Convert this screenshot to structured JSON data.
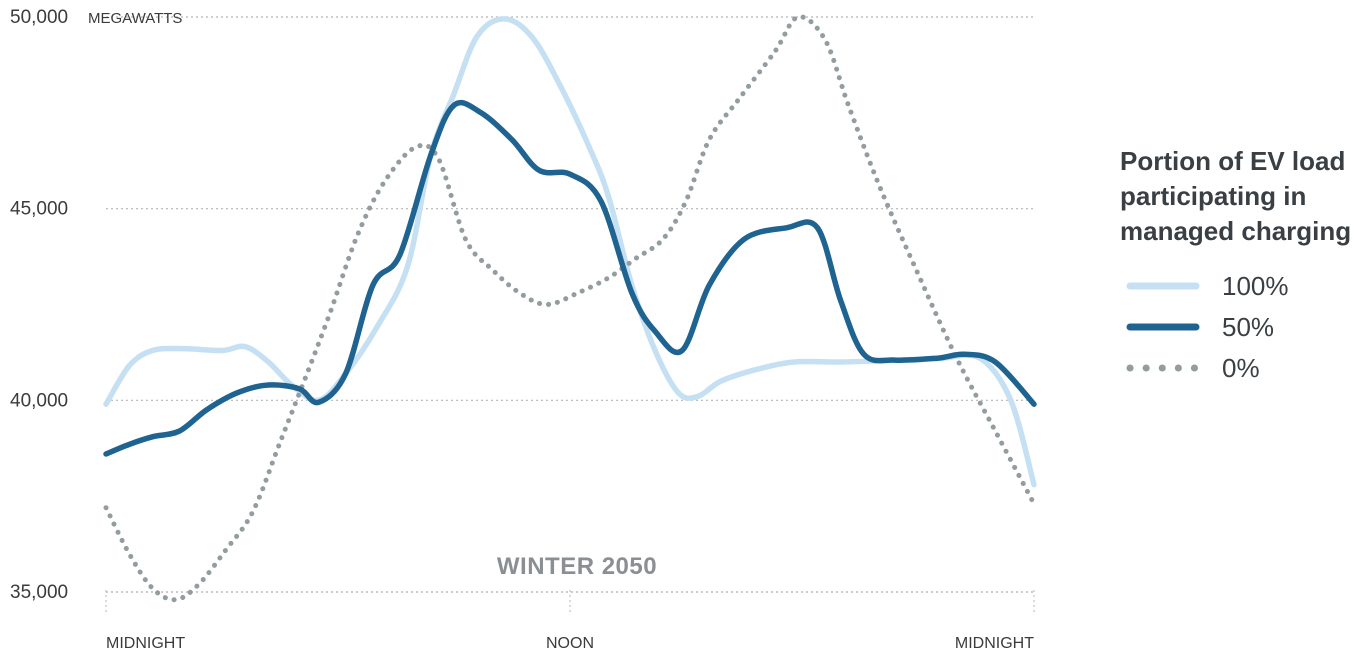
{
  "chart_data": {
    "type": "line",
    "title": "",
    "annotation": "WINTER 2050",
    "y_unit": "MEGAWATTS",
    "ylim": [
      35000,
      50000
    ],
    "y_ticks": [
      {
        "value": 35000,
        "label": "35,000"
      },
      {
        "value": 40000,
        "label": "40,000"
      },
      {
        "value": 45000,
        "label": "45,000"
      },
      {
        "value": 50000,
        "label": "50,000"
      }
    ],
    "x_domain_hours": [
      0,
      24
    ],
    "x_ticks": [
      {
        "hour": 0,
        "label": "MIDNIGHT"
      },
      {
        "hour": 12,
        "label": "NOON"
      },
      {
        "hour": 24,
        "label": "MIDNIGHT"
      }
    ],
    "grid": "horizontal dotted",
    "legend": {
      "title_lines": [
        "Portion of EV load",
        "participating in",
        "managed charging"
      ],
      "placement": "right"
    },
    "series": [
      {
        "name": "100%",
        "color": "#c5e0f3",
        "style": "solid",
        "points": [
          [
            0.0,
            39900
          ],
          [
            0.6,
            40900
          ],
          [
            1.2,
            41300
          ],
          [
            2.0,
            41350
          ],
          [
            3.0,
            41300
          ],
          [
            3.6,
            41400
          ],
          [
            4.2,
            41000
          ],
          [
            4.8,
            40400
          ],
          [
            5.5,
            40000
          ],
          [
            6.2,
            40700
          ],
          [
            7.0,
            41900
          ],
          [
            7.8,
            43500
          ],
          [
            8.4,
            46400
          ],
          [
            9.0,
            48000
          ],
          [
            9.6,
            49500
          ],
          [
            10.3,
            49950
          ],
          [
            11.0,
            49500
          ],
          [
            11.7,
            48300
          ],
          [
            12.5,
            46600
          ],
          [
            13.0,
            45300
          ],
          [
            13.6,
            43000
          ],
          [
            14.2,
            41300
          ],
          [
            14.8,
            40200
          ],
          [
            15.3,
            40100
          ],
          [
            15.9,
            40500
          ],
          [
            16.8,
            40800
          ],
          [
            17.8,
            41000
          ],
          [
            19.0,
            41000
          ],
          [
            20.5,
            41050
          ],
          [
            21.6,
            41100
          ],
          [
            22.6,
            41100
          ],
          [
            23.4,
            40000
          ],
          [
            24.0,
            37800
          ]
        ]
      },
      {
        "name": "50%",
        "color": "#1f6491",
        "style": "solid",
        "points": [
          [
            0.0,
            38600
          ],
          [
            0.6,
            38850
          ],
          [
            1.2,
            39050
          ],
          [
            1.9,
            39200
          ],
          [
            2.6,
            39750
          ],
          [
            3.4,
            40200
          ],
          [
            4.2,
            40400
          ],
          [
            5.0,
            40300
          ],
          [
            5.5,
            39950
          ],
          [
            6.2,
            40700
          ],
          [
            6.9,
            43000
          ],
          [
            7.6,
            43800
          ],
          [
            8.4,
            46400
          ],
          [
            9.0,
            47700
          ],
          [
            9.7,
            47500
          ],
          [
            10.5,
            46800
          ],
          [
            11.2,
            46000
          ],
          [
            12.0,
            45900
          ],
          [
            12.8,
            45200
          ],
          [
            13.6,
            42800
          ],
          [
            14.2,
            41800
          ],
          [
            14.9,
            41300
          ],
          [
            15.6,
            43000
          ],
          [
            16.5,
            44200
          ],
          [
            17.6,
            44500
          ],
          [
            18.4,
            44500
          ],
          [
            19.0,
            42600
          ],
          [
            19.6,
            41200
          ],
          [
            20.4,
            41050
          ],
          [
            21.5,
            41100
          ],
          [
            22.2,
            41200
          ],
          [
            23.0,
            41000
          ],
          [
            24.0,
            39900
          ]
        ]
      },
      {
        "name": "0%",
        "color": "#939c9f",
        "style": "dotted",
        "points": [
          [
            0.0,
            37200
          ],
          [
            0.6,
            36000
          ],
          [
            1.2,
            35100
          ],
          [
            1.8,
            34800
          ],
          [
            2.4,
            35200
          ],
          [
            3.1,
            36100
          ],
          [
            3.8,
            37100
          ],
          [
            4.5,
            38900
          ],
          [
            5.2,
            40700
          ],
          [
            5.8,
            42300
          ],
          [
            6.5,
            44300
          ],
          [
            7.2,
            45700
          ],
          [
            8.0,
            46600
          ],
          [
            8.6,
            46300
          ],
          [
            9.3,
            44200
          ],
          [
            10.0,
            43400
          ],
          [
            10.7,
            42800
          ],
          [
            11.4,
            42500
          ],
          [
            12.2,
            42800
          ],
          [
            13.0,
            43200
          ],
          [
            13.7,
            43700
          ],
          [
            14.4,
            44200
          ],
          [
            15.0,
            45200
          ],
          [
            15.6,
            46800
          ],
          [
            16.4,
            47900
          ],
          [
            17.3,
            49100
          ],
          [
            17.9,
            50000
          ],
          [
            18.6,
            49400
          ],
          [
            19.2,
            47700
          ],
          [
            20.0,
            45600
          ],
          [
            21.0,
            43300
          ],
          [
            22.0,
            41100
          ],
          [
            23.0,
            39200
          ],
          [
            24.0,
            37300
          ]
        ]
      }
    ]
  }
}
